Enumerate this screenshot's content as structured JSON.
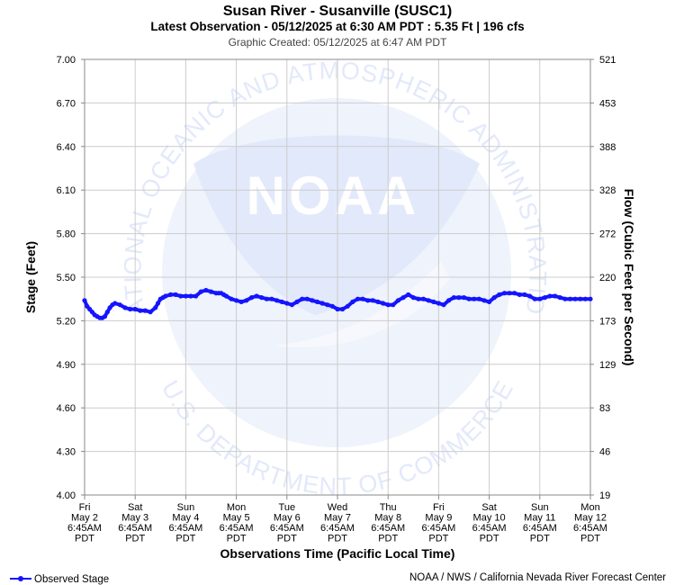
{
  "colors": {
    "series": "#1414ff",
    "grid": "#cccccc",
    "axis": "#888888",
    "watermark": "#e4ecfa"
  },
  "watermark": {
    "icon": "noaa-logo",
    "logo_text": "NOAA",
    "ring_top": "NATIONAL OCEANIC AND ATMOSPHERIC ADMINISTRATION",
    "ring_bottom": "U.S. DEPARTMENT OF COMMERCE"
  },
  "footer": {
    "credit": "NOAA / NWS / California Nevada River Forecast Center"
  },
  "chart_data": {
    "type": "line",
    "title": "Susan River - Susanville (SUSC1)",
    "subtitle": "Latest Observation - 05/12/2025 at 6:30 AM PDT : 5.35 Ft | 196 cfs",
    "created": "Graphic Created: 05/12/2025 at 6:47 AM PDT",
    "xlabel": "Observations Time (Pacific Local Time)",
    "ylabel": "Stage (Feet)",
    "y2label": "Flow (Cubic Feet per Second)",
    "ylim": [
      4.0,
      7.0
    ],
    "yticks": [
      "7.00",
      "6.70",
      "6.40",
      "6.10",
      "5.80",
      "5.50",
      "5.20",
      "4.90",
      "4.60",
      "4.30",
      "4.00"
    ],
    "y2ticks": [
      "521",
      "453",
      "388",
      "328",
      "272",
      "220",
      "173",
      "129",
      "83",
      "46",
      "19"
    ],
    "xlim": [
      0,
      10
    ],
    "xticks": [
      [
        "Fri",
        "May 2",
        "6:45AM",
        "PDT"
      ],
      [
        "Sat",
        "May 3",
        "6:45AM",
        "PDT"
      ],
      [
        "Sun",
        "May 4",
        "6:45AM",
        "PDT"
      ],
      [
        "Mon",
        "May 5",
        "6:45AM",
        "PDT"
      ],
      [
        "Tue",
        "May 6",
        "6:45AM",
        "PDT"
      ],
      [
        "Wed",
        "May 7",
        "6:45AM",
        "PDT"
      ],
      [
        "Thu",
        "May 8",
        "6:45AM",
        "PDT"
      ],
      [
        "Fri",
        "May 9",
        "6:45AM",
        "PDT"
      ],
      [
        "Sat",
        "May 10",
        "6:45AM",
        "PDT"
      ],
      [
        "Sun",
        "May 11",
        "6:45AM",
        "PDT"
      ],
      [
        "Mon",
        "May 12",
        "6:45AM",
        "PDT"
      ]
    ],
    "grid": true,
    "legend_position": "bottom-left",
    "series": [
      {
        "name": "Observed Stage",
        "x": [
          0.0,
          0.05,
          0.1,
          0.15,
          0.2,
          0.25,
          0.3,
          0.35,
          0.4,
          0.45,
          0.5,
          0.55,
          0.6,
          0.7,
          0.8,
          0.9,
          1.0,
          1.1,
          1.2,
          1.3,
          1.4,
          1.45,
          1.5,
          1.55,
          1.6,
          1.7,
          1.8,
          1.9,
          2.0,
          2.1,
          2.2,
          2.3,
          2.4,
          2.5,
          2.6,
          2.65,
          2.7,
          2.75,
          2.8,
          2.9,
          3.0,
          3.1,
          3.2,
          3.3,
          3.4,
          3.5,
          3.6,
          3.7,
          3.8,
          3.9,
          4.0,
          4.1,
          4.2,
          4.3,
          4.4,
          4.5,
          4.6,
          4.7,
          4.8,
          4.9,
          5.0,
          5.1,
          5.2,
          5.3,
          5.4,
          5.5,
          5.6,
          5.7,
          5.8,
          5.9,
          6.0,
          6.1,
          6.2,
          6.3,
          6.4,
          6.5,
          6.6,
          6.7,
          6.8,
          6.9,
          7.0,
          7.1,
          7.2,
          7.3,
          7.4,
          7.5,
          7.6,
          7.7,
          7.8,
          7.9,
          8.0,
          8.1,
          8.2,
          8.3,
          8.4,
          8.5,
          8.6,
          8.7,
          8.8,
          8.9,
          9.0,
          9.1,
          9.2,
          9.3,
          9.4,
          9.5,
          9.6,
          9.7,
          9.8,
          9.9,
          10.0
        ],
        "values": [
          5.34,
          5.3,
          5.28,
          5.26,
          5.24,
          5.23,
          5.22,
          5.22,
          5.23,
          5.26,
          5.29,
          5.31,
          5.32,
          5.31,
          5.29,
          5.28,
          5.28,
          5.27,
          5.27,
          5.26,
          5.29,
          5.32,
          5.35,
          5.36,
          5.37,
          5.38,
          5.38,
          5.37,
          5.37,
          5.37,
          5.37,
          5.4,
          5.41,
          5.4,
          5.39,
          5.39,
          5.39,
          5.38,
          5.37,
          5.35,
          5.34,
          5.33,
          5.34,
          5.36,
          5.37,
          5.36,
          5.35,
          5.35,
          5.34,
          5.33,
          5.32,
          5.31,
          5.33,
          5.35,
          5.35,
          5.34,
          5.33,
          5.32,
          5.31,
          5.3,
          5.28,
          5.28,
          5.3,
          5.33,
          5.35,
          5.35,
          5.34,
          5.34,
          5.33,
          5.32,
          5.31,
          5.31,
          5.34,
          5.36,
          5.38,
          5.36,
          5.35,
          5.35,
          5.34,
          5.33,
          5.32,
          5.31,
          5.34,
          5.36,
          5.36,
          5.36,
          5.35,
          5.35,
          5.35,
          5.34,
          5.33,
          5.36,
          5.38,
          5.39,
          5.39,
          5.39,
          5.38,
          5.38,
          5.37,
          5.35,
          5.35,
          5.36,
          5.37,
          5.37,
          5.36,
          5.35,
          5.35,
          5.35,
          5.35,
          5.35,
          5.35
        ]
      }
    ]
  }
}
